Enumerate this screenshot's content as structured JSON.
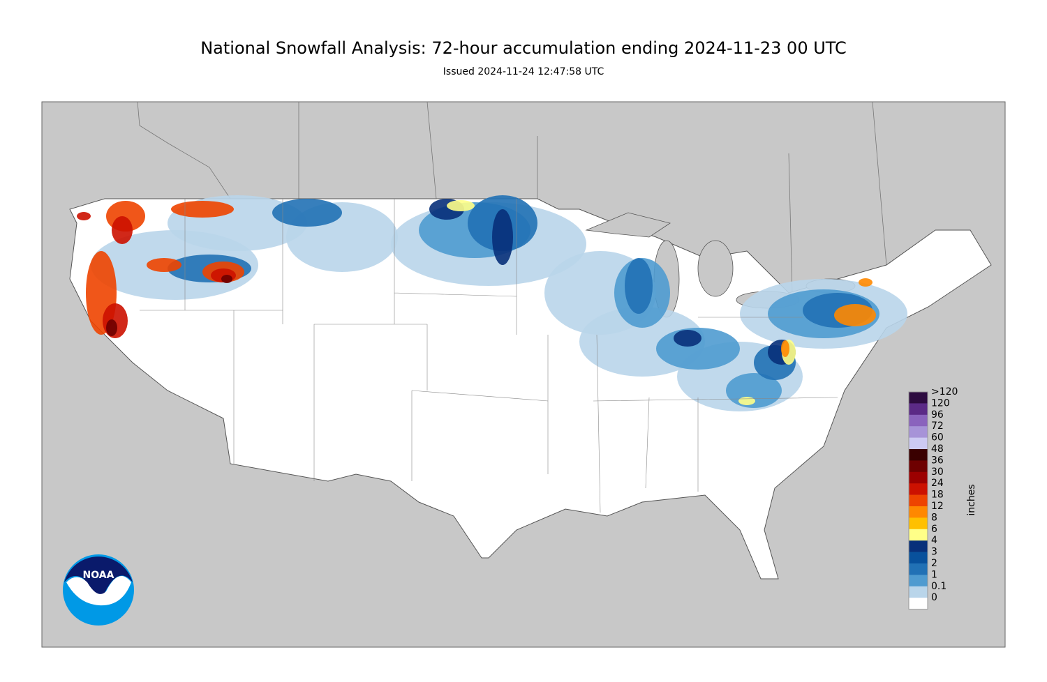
{
  "title": "National Snowfall Analysis: 72-hour accumulation ending 2024-11-23 00 UTC",
  "subtitle": "Issued 2024-11-24 12:47:58 UTC",
  "logo": "NOAA",
  "legend": {
    "unit": "inches",
    "levels": [
      {
        "label": ">120",
        "color": "#2d0b40"
      },
      {
        "label": "120",
        "color": "#5b2a86"
      },
      {
        "label": "96",
        "color": "#8a63bd"
      },
      {
        "label": "72",
        "color": "#a793d8"
      },
      {
        "label": "60",
        "color": "#cdcaf3"
      },
      {
        "label": "48",
        "color": "#3a0000"
      },
      {
        "label": "36",
        "color": "#6e0000"
      },
      {
        "label": "30",
        "color": "#9c0000"
      },
      {
        "label": "24",
        "color": "#cc1100"
      },
      {
        "label": "18",
        "color": "#ee4400"
      },
      {
        "label": "12",
        "color": "#ff8800"
      },
      {
        "label": "8",
        "color": "#ffc000"
      },
      {
        "label": "6",
        "color": "#ffff88"
      },
      {
        "label": "4",
        "color": "#08307a"
      },
      {
        "label": "3",
        "color": "#08519c"
      },
      {
        "label": "2",
        "color": "#2171b5"
      },
      {
        "label": "1",
        "color": "#4f9bd0"
      },
      {
        "label": "0.1",
        "color": "#b9d5ea"
      },
      {
        "label": "0",
        "color": "#deebf7"
      }
    ]
  }
}
